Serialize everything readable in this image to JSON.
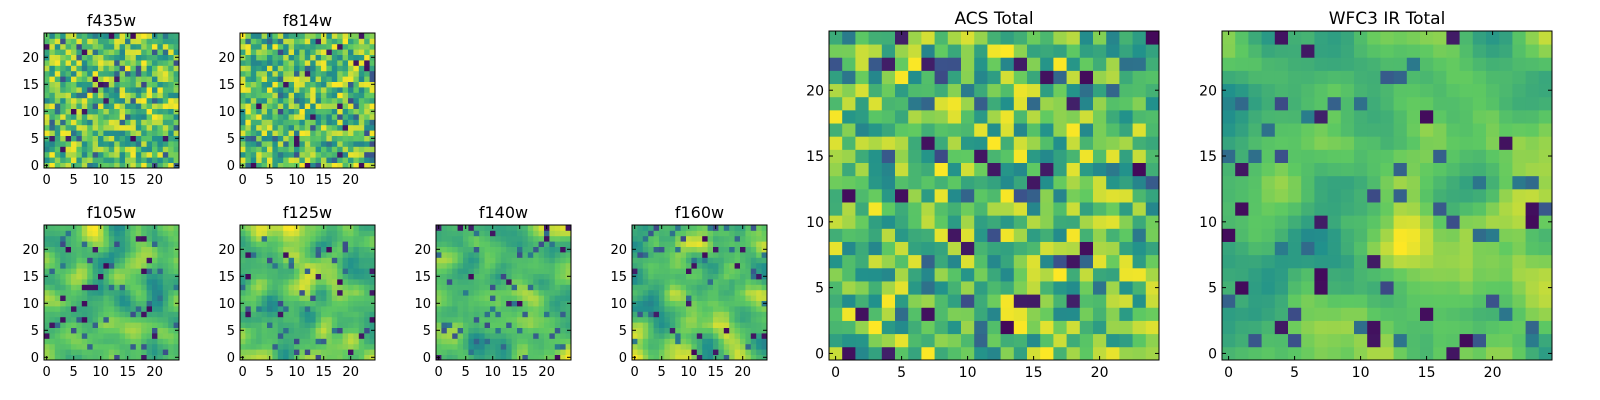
{
  "chart_data": [
    {
      "type": "heatmap",
      "title": "f435w",
      "x_ticks": [
        "0",
        "5",
        "10",
        "15",
        "20"
      ],
      "y_ticks": [
        "0",
        "5",
        "10",
        "15",
        "20"
      ],
      "xlim": [
        -0.5,
        24.5
      ],
      "ylim": [
        -0.5,
        24.5
      ],
      "grid_size": 25,
      "colormap": "viridis",
      "texture": "pixel-level noise",
      "cell_values": "unlabeled"
    },
    {
      "type": "heatmap",
      "title": "f814w",
      "x_ticks": [
        "0",
        "5",
        "10",
        "15",
        "20"
      ],
      "y_ticks": [
        "0",
        "5",
        "10",
        "15",
        "20"
      ],
      "xlim": [
        -0.5,
        24.5
      ],
      "ylim": [
        -0.5,
        24.5
      ],
      "grid_size": 25,
      "colormap": "viridis",
      "texture": "pixel-level noise",
      "cell_values": "unlabeled"
    },
    {
      "type": "heatmap",
      "title": "f105w",
      "x_ticks": [
        "0",
        "5",
        "10",
        "15",
        "20"
      ],
      "y_ticks": [
        "0",
        "5",
        "10",
        "15",
        "20"
      ],
      "xlim": [
        -0.5,
        24.5
      ],
      "ylim": [
        -0.5,
        24.5
      ],
      "grid_size": 25,
      "colormap": "viridis",
      "texture": "smooth correlated blobs",
      "cell_values": "unlabeled"
    },
    {
      "type": "heatmap",
      "title": "f125w",
      "x_ticks": [
        "0",
        "5",
        "10",
        "15",
        "20"
      ],
      "y_ticks": [
        "0",
        "5",
        "10",
        "15",
        "20"
      ],
      "xlim": [
        -0.5,
        24.5
      ],
      "ylim": [
        -0.5,
        24.5
      ],
      "grid_size": 25,
      "colormap": "viridis",
      "texture": "smooth correlated blobs",
      "cell_values": "unlabeled"
    },
    {
      "type": "heatmap",
      "title": "f140w",
      "x_ticks": [
        "0",
        "5",
        "10",
        "15",
        "20"
      ],
      "y_ticks": [
        "0",
        "5",
        "10",
        "15",
        "20"
      ],
      "xlim": [
        -0.5,
        24.5
      ],
      "ylim": [
        -0.5,
        24.5
      ],
      "grid_size": 25,
      "colormap": "viridis",
      "texture": "smooth correlated blobs",
      "cell_values": "unlabeled"
    },
    {
      "type": "heatmap",
      "title": "f160w",
      "x_ticks": [
        "0",
        "5",
        "10",
        "15",
        "20"
      ],
      "y_ticks": [
        "0",
        "5",
        "10",
        "15",
        "20"
      ],
      "xlim": [
        -0.5,
        24.5
      ],
      "ylim": [
        -0.5,
        24.5
      ],
      "grid_size": 25,
      "colormap": "viridis",
      "texture": "smooth correlated blobs",
      "cell_values": "unlabeled"
    },
    {
      "type": "heatmap",
      "title": "ACS Total",
      "x_ticks": [
        "0",
        "5",
        "10",
        "15",
        "20"
      ],
      "y_ticks": [
        "0",
        "5",
        "10",
        "15",
        "20"
      ],
      "xlim": [
        -0.5,
        24.5
      ],
      "ylim": [
        -0.5,
        24.5
      ],
      "grid_size": 25,
      "colormap": "viridis",
      "texture": "pixel-level noise",
      "cell_values": "unlabeled"
    },
    {
      "type": "heatmap",
      "title": "WFC3 IR Total",
      "x_ticks": [
        "0",
        "5",
        "10",
        "15",
        "20"
      ],
      "y_ticks": [
        "0",
        "5",
        "10",
        "15",
        "20"
      ],
      "xlim": [
        -0.5,
        24.5
      ],
      "ylim": [
        -0.5,
        24.5
      ],
      "grid_size": 25,
      "colormap": "viridis",
      "texture": "smooth correlated blobs",
      "cell_values": "unlabeled"
    }
  ],
  "colors": {
    "viridis_stops": [
      "#440154",
      "#3b528b",
      "#21918c",
      "#5ec962",
      "#fde725"
    ],
    "axis": "#000000",
    "background": "#ffffff"
  }
}
